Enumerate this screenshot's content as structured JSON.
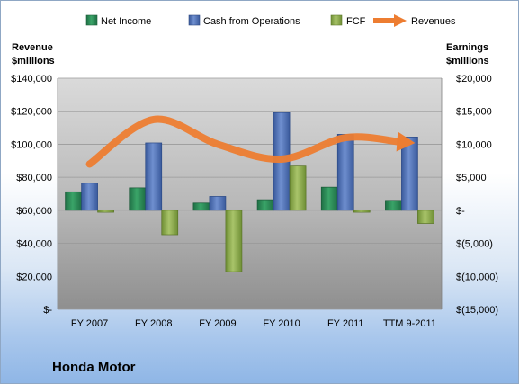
{
  "chart_data": {
    "type": "bar",
    "title": "",
    "company": "Honda Motor",
    "categories": [
      "FY 2007",
      "FY 2008",
      "FY 2009",
      "FY 2010",
      "FY 2011",
      "TTM 9-2011"
    ],
    "left_axis": {
      "title_line1": "Revenue",
      "title_line2": "$millions",
      "ylim": [
        0,
        140000
      ],
      "ticks": [
        0,
        20000,
        40000,
        60000,
        80000,
        100000,
        120000,
        140000
      ],
      "tick_labels": [
        "$-",
        "$20,000",
        "$40,000",
        "$60,000",
        "$80,000",
        "$100,000",
        "$120,000",
        "$140,000"
      ]
    },
    "right_axis": {
      "title_line1": "Earnings",
      "title_line2": "$millions",
      "ylim": [
        -15000,
        20000
      ],
      "ticks": [
        -15000,
        -10000,
        -5000,
        0,
        5000,
        10000,
        15000,
        20000
      ],
      "tick_labels": [
        "$(15,000)",
        "$(10,000)",
        "$(5,000)",
        "$-",
        "$5,000",
        "$10,000",
        "$15,000",
        "$20,000"
      ]
    },
    "series": [
      {
        "name": "Net Income",
        "axis": "right",
        "kind": "bar",
        "color": "#2e8b57",
        "values": [
          2800,
          3400,
          1100,
          1600,
          3500,
          1500
        ]
      },
      {
        "name": "Cash from Operations",
        "axis": "right",
        "kind": "bar",
        "color": "#4f6fb0",
        "values": [
          4100,
          10200,
          2100,
          14800,
          11500,
          11100
        ]
      },
      {
        "name": "FCF",
        "axis": "right",
        "kind": "bar",
        "color": "#8fb050",
        "values": [
          -300,
          -3700,
          -9300,
          6700,
          -300,
          -2000
        ]
      },
      {
        "name": "Revenues",
        "axis": "left",
        "kind": "line",
        "color": "#ed7d31",
        "values": [
          88000,
          115000,
          100000,
          91000,
          104000,
          101000
        ]
      }
    ],
    "grid": true,
    "legend_position": "top"
  }
}
